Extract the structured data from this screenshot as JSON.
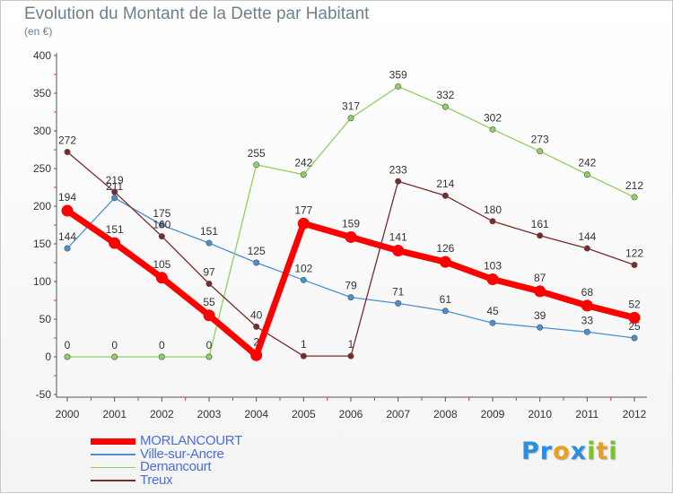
{
  "title": "Evolution du Montant de la Dette par Habitant",
  "subtitle": "(en €)",
  "colors": {
    "background": "#ffffff",
    "axis": "#555555",
    "tick_marks": "#c83c50",
    "labels": "#333333",
    "legend_text": "#4a6ee0"
  },
  "logo": {
    "text": "Proxiti",
    "letters": [
      {
        "ch": "P",
        "color": "#2a8de0"
      },
      {
        "ch": "r",
        "color": "#2a8de0"
      },
      {
        "ch": "o",
        "color": "#e8a020"
      },
      {
        "ch": "x",
        "color": "#2a8de0"
      },
      {
        "ch": "i",
        "color": "#7cc030"
      },
      {
        "ch": "t",
        "color": "#e8a020"
      },
      {
        "ch": "i",
        "color": "#7cc030"
      }
    ]
  },
  "chart_data": {
    "type": "line",
    "title": "Evolution du Montant de la Dette par Habitant",
    "subtitle": "(en €)",
    "categories": [
      "2000",
      "2001",
      "2002",
      "2003",
      "2004",
      "2005",
      "2006",
      "2007",
      "2008",
      "2009",
      "2010",
      "2011",
      "2012"
    ],
    "ylim": [
      -50,
      400
    ],
    "yticks": [
      -50,
      0,
      50,
      100,
      150,
      200,
      250,
      300,
      350,
      400
    ],
    "grid": false,
    "legend_position": "bottom-left",
    "series": [
      {
        "name": "MORLANCOURT",
        "color": "#ff0000",
        "values": [
          194,
          151,
          105,
          55,
          2,
          177,
          159,
          141,
          126,
          103,
          87,
          68,
          52
        ],
        "emphasis": true
      },
      {
        "name": "Ville-sur-Ancre",
        "color": "#4a90d0",
        "values": [
          144,
          211,
          175,
          151,
          125,
          102,
          79,
          71,
          61,
          45,
          39,
          33,
          25
        ],
        "emphasis": false
      },
      {
        "name": "Dernancourt",
        "color": "#8fd060",
        "values": [
          0,
          0,
          0,
          0,
          255,
          242,
          317,
          359,
          332,
          302,
          273,
          242,
          212
        ],
        "emphasis": false
      },
      {
        "name": "Treux",
        "color": "#7a2a2a",
        "values": [
          272,
          219,
          160,
          97,
          40,
          1,
          1,
          233,
          214,
          180,
          161,
          144,
          122
        ],
        "emphasis": false
      }
    ]
  }
}
